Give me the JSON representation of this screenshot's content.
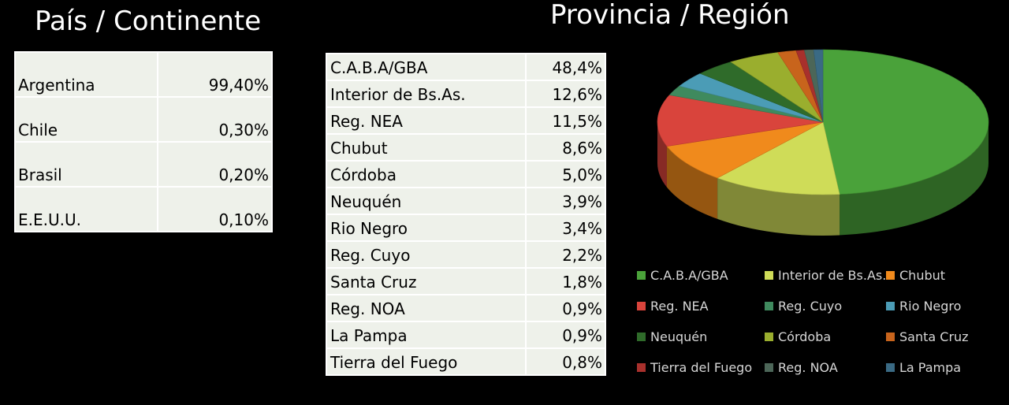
{
  "titles": {
    "left": "País / Continente",
    "right": "Provincia / Región"
  },
  "countries": [
    {
      "name": "Argentina",
      "value": "99,40%"
    },
    {
      "name": "Chile",
      "value": "0,30%"
    },
    {
      "name": "Brasil",
      "value": "0,20%"
    },
    {
      "name": "E.E.U.U.",
      "value": "0,10%"
    }
  ],
  "provinces": [
    {
      "name": "C.A.B.A/GBA",
      "value": "48,4%"
    },
    {
      "name": "Interior de Bs.As.",
      "value": "12,6%"
    },
    {
      "name": "Reg. NEA",
      "value": "11,5%"
    },
    {
      "name": "Chubut",
      "value": "8,6%"
    },
    {
      "name": "Córdoba",
      "value": "5,0%"
    },
    {
      "name": "Neuquén",
      "value": "3,9%"
    },
    {
      "name": "Rio Negro",
      "value": "3,4%"
    },
    {
      "name": "Reg. Cuyo",
      "value": "2,2%"
    },
    {
      "name": "Santa Cruz",
      "value": "1,8%"
    },
    {
      "name": "Reg. NOA",
      "value": "0,9%"
    },
    {
      "name": "La Pampa",
      "value": "0,9%"
    },
    {
      "name": "Tierra del Fuego",
      "value": "0,8%"
    }
  ],
  "chart_data": {
    "type": "pie",
    "title": "",
    "categories": [
      "C.A.B.A/GBA",
      "Interior de Bs.As.",
      "Chubut",
      "Reg. NEA",
      "Reg. Cuyo",
      "Rio Negro",
      "Neuquén",
      "Córdoba",
      "Santa Cruz",
      "Tierra del Fuego",
      "Reg. NOA",
      "La Pampa"
    ],
    "values": [
      48.4,
      12.6,
      8.6,
      11.5,
      2.2,
      3.4,
      3.9,
      5.0,
      1.8,
      0.8,
      0.9,
      0.9
    ],
    "colors": [
      "#4aa23a",
      "#cfdc58",
      "#f08a1c",
      "#d9443c",
      "#3f8a5e",
      "#4b9cb6",
      "#2f6b2a",
      "#9aae2e",
      "#c8641c",
      "#a8302c",
      "#4c6658",
      "#3a6a84"
    ],
    "legend_position": "bottom"
  }
}
